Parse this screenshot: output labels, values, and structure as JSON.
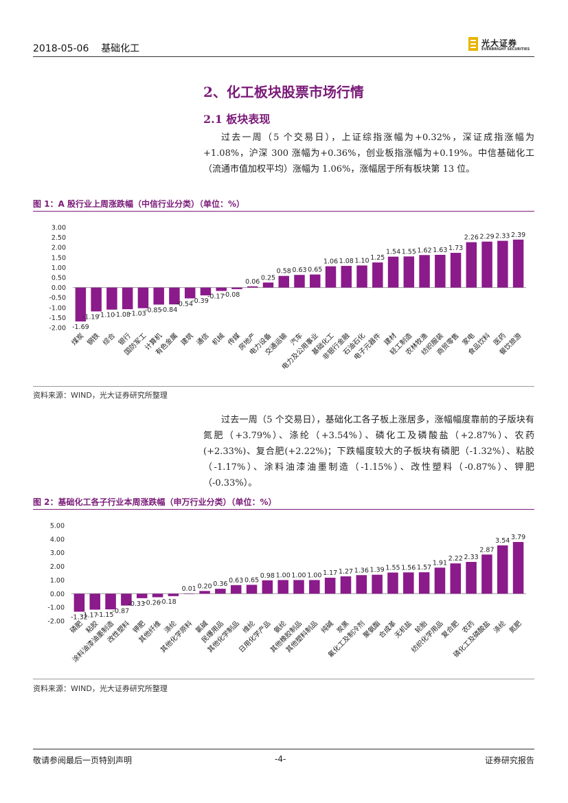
{
  "header": {
    "date": "2018-05-06",
    "sector": "基础化工",
    "logo_cn": "光大证券",
    "logo_en": "EVERBRIGHT SECURITIES"
  },
  "section": {
    "title": "2、化工板块股票市场行情",
    "subtitle": "2.1    板块表现"
  },
  "paragraphs": {
    "p1": "过去一周（5 个交易日），上证综指涨幅为+0.32%，深证成指涨幅为+1.08%，沪深 300 涨幅为+0.36%，创业板指涨幅为+0.19%。中信基础化工（流通市值加权平均）涨幅为 1.06%，涨幅居于所有板块第 13 位。",
    "p2": "过去一周（5 个交易日），基础化工各子板上涨居多，涨幅幅度靠前的子版块有氮肥（+3.79%）、涤纶（+3.54%）、磷化工及磷酸盐（+2.87%）、农药(+2.33%)、复合肥(+2.22%)；下跌幅度较大的子板块有磷肥（-1.32%）、粘胶（-1.17%）、涂料油漆油墨制造（-1.15%）、改性塑料（-0.87%）、钾肥（-0.33%）。"
  },
  "figure1": {
    "title": "图 1：A 股行业上周涨跌幅（中信行业分类）（单位：%）",
    "source": "资料来源：WIND，光大证券研究所整理"
  },
  "figure2": {
    "title": "图 2：基础化工各子行业本周涨跌幅（申万行业分类）（单位：%）",
    "source": "资料来源：WIND，光大证券研究所整理"
  },
  "chart_data": [
    {
      "type": "bar",
      "title": "A 股行业上周涨跌幅（中信行业分类）（单位：%）",
      "ylim": [
        -2.0,
        3.0
      ],
      "yticks": [
        "3.00",
        "2.50",
        "2.00",
        "1.50",
        "1.00",
        "0.50",
        "0.00",
        "-0.50",
        "-1.00",
        "-1.50",
        "-2.00"
      ],
      "color": "#8b1a8b",
      "categories": [
        "煤炭",
        "钢铁",
        "综合",
        "银行",
        "国防军工",
        "计算机",
        "有色金属",
        "建筑",
        "通信",
        "机械",
        "传媒",
        "房地产",
        "电力设备",
        "交通运输",
        "汽车",
        "电力及公用事业",
        "基础化工",
        "非银行金融",
        "石油石化",
        "电子元器件",
        "建材",
        "轻工制造",
        "农林牧渔",
        "纺织服装",
        "商贸零售",
        "家电",
        "食品饮料",
        "医药",
        "餐饮旅游"
      ],
      "values": [
        -1.69,
        -1.19,
        -1.1,
        -1.08,
        -1.03,
        -0.85,
        -0.84,
        -0.54,
        -0.39,
        -0.17,
        -0.08,
        0.06,
        0.25,
        0.58,
        0.63,
        0.65,
        1.06,
        1.08,
        1.1,
        1.25,
        1.54,
        1.55,
        1.62,
        1.63,
        1.73,
        2.26,
        2.29,
        2.33,
        2.39
      ],
      "labels": [
        "-1.69",
        "-1.19",
        "-1.10",
        "-1.08",
        "-1.03",
        "-0.85",
        "-0.84",
        "-0.54",
        "-0.39",
        "-0.17",
        "-0.08",
        "0.06",
        "0.25",
        "0.58",
        "0.63",
        "0.65",
        "1.06",
        "1.08",
        "1.10",
        "1.25",
        "1.54",
        "1.55",
        "1.62",
        "1.63",
        "1.73",
        "2.26",
        "2.29",
        "2.33",
        "2.39"
      ]
    },
    {
      "type": "bar",
      "title": "基础化工各子行业本周涨跌幅（申万行业分类）（单位：%）",
      "ylim": [
        -2.0,
        5.0
      ],
      "yticks": [
        "5.00",
        "4.00",
        "3.00",
        "2.00",
        "1.00",
        "0.00",
        "-1.00",
        "-2.00"
      ],
      "color": "#8b1a8b",
      "categories": [
        "磷肥",
        "粘胶",
        "涂料油漆油墨制造",
        "改性塑料",
        "钾肥",
        "其他纤维",
        "涤纶",
        "其他化学原料",
        "氯碱",
        "民爆用品",
        "其他化学制品",
        "维纶",
        "日用化学产品",
        "氨纶",
        "其他橡胶制品",
        "其他塑料制品",
        "纯碱",
        "炭黑",
        "氟化工及制冷剂",
        "聚氨酯",
        "合成革",
        "无机盐",
        "轮胎",
        "纺织化学用品",
        "复合肥",
        "农药",
        "磷化工及磷酸盐",
        "涤纶",
        "氮肥"
      ],
      "values": [
        -1.32,
        -1.17,
        -1.15,
        -0.87,
        -0.33,
        -0.26,
        -0.18,
        0.01,
        0.2,
        0.36,
        0.63,
        0.65,
        0.98,
        1.0,
        1.0,
        1.0,
        1.17,
        1.27,
        1.36,
        1.39,
        1.55,
        1.56,
        1.57,
        1.91,
        2.22,
        2.33,
        2.87,
        3.54,
        3.79
      ],
      "labels": [
        "-1.32",
        "-1.17",
        "-1.15",
        "-0.87",
        "-0.33",
        "-0.26",
        "-0.18",
        "0.01",
        "0.20",
        "0.36",
        "0.63",
        "0.65",
        "0.98",
        "1.00",
        "1.00",
        "1.00",
        "1.17",
        "1.27",
        "1.36",
        "1.39",
        "1.55",
        "1.56",
        "1.57",
        "1.91",
        "2.22",
        "2.33",
        "2.87",
        "3.54",
        "3.79"
      ]
    }
  ],
  "footer": {
    "left": "敬请参阅最后一页特别声明",
    "page": "-4-",
    "right": "证券研究报告"
  }
}
